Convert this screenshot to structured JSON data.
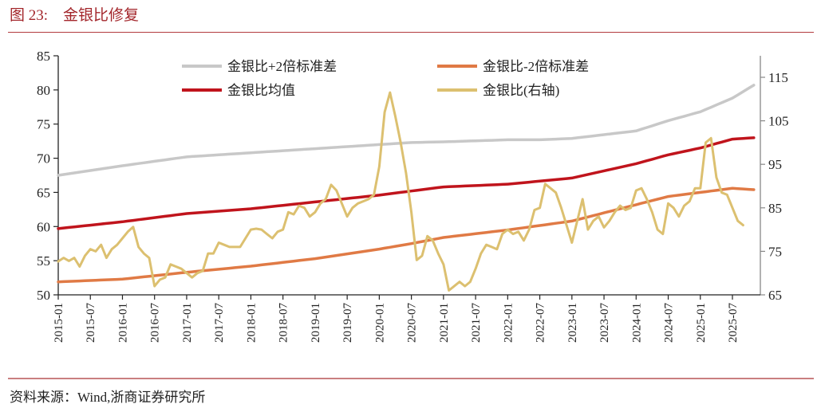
{
  "header": {
    "figure_number": "图 23:",
    "figure_title": "金银比修复"
  },
  "footer": {
    "source": "资料来源：Wind,浙商证券研究所"
  },
  "colors": {
    "plus2sd": "#c8c8c8",
    "minus2sd": "#e07a45",
    "mean": "#c0141c",
    "ratio": "#dcc070",
    "title": "#a3262b"
  },
  "chart_data": {
    "type": "line",
    "title": "金银比修复",
    "xlabel": "",
    "ylabel_left": "",
    "ylabel_right": "",
    "ylim_left": [
      50,
      85
    ],
    "ylim_right": [
      65,
      120
    ],
    "yticks_left": [
      50,
      55,
      60,
      65,
      70,
      75,
      80,
      85
    ],
    "yticks_right": [
      65,
      75,
      85,
      95,
      105,
      115
    ],
    "xtick_labels": [
      "2015-01",
      "2015-07",
      "2016-01",
      "2016-07",
      "2017-01",
      "2017-07",
      "2018-01",
      "2018-07",
      "2019-01",
      "2019-07",
      "2020-01",
      "2020-07",
      "2021-01",
      "2021-07",
      "2022-01",
      "2022-07",
      "2023-01",
      "2023-07",
      "2024-01",
      "2024-07",
      "2025-01",
      "2025-07"
    ],
    "x_start": "2015-01",
    "frequency": "monthly",
    "grid": false,
    "legend_position": "top",
    "legend": [
      "金银比+2倍标准差",
      "金银比-2倍标准差",
      "金银比均值",
      "金银比(右轴)"
    ],
    "series": [
      {
        "name": "金银比+2倍标准差",
        "axis": "left",
        "color": "#c8c8c8",
        "anchor_months": [
          0,
          12,
          24,
          36,
          48,
          60,
          66,
          72,
          84,
          90,
          96,
          108,
          114,
          120,
          126,
          130
        ],
        "anchor_values": [
          67.5,
          68.9,
          70.2,
          70.8,
          71.4,
          72.0,
          72.3,
          72.4,
          72.7,
          72.7,
          72.9,
          74.0,
          75.5,
          76.8,
          78.8,
          80.7
        ]
      },
      {
        "name": "金银比-2倍标准差",
        "axis": "left",
        "color": "#e07a45",
        "anchor_months": [
          0,
          12,
          24,
          36,
          48,
          60,
          66,
          72,
          84,
          96,
          108,
          114,
          120,
          126,
          130
        ],
        "anchor_values": [
          51.9,
          52.3,
          53.3,
          54.2,
          55.3,
          56.7,
          57.5,
          58.4,
          59.5,
          60.8,
          63.2,
          64.4,
          65.0,
          65.6,
          65.4
        ]
      },
      {
        "name": "金银比均值",
        "axis": "left",
        "color": "#c0141c",
        "anchor_months": [
          0,
          12,
          24,
          36,
          48,
          60,
          66,
          72,
          84,
          96,
          108,
          114,
          120,
          126,
          130
        ],
        "anchor_values": [
          59.7,
          60.7,
          61.9,
          62.6,
          63.6,
          64.6,
          65.2,
          65.8,
          66.2,
          67.1,
          69.2,
          70.5,
          71.5,
          72.8,
          73.0
        ]
      },
      {
        "name": "金银比(右轴)",
        "axis": "right",
        "color": "#dcc070",
        "values": [
          72.7,
          73.5,
          72.8,
          73.5,
          71.5,
          74,
          75.5,
          75,
          76.5,
          73.5,
          75.5,
          76.5,
          78,
          79.5,
          80.6,
          76,
          74.5,
          73.5,
          67,
          68.5,
          69,
          72,
          71.5,
          71,
          70,
          69,
          70,
          70.5,
          74.5,
          74.5,
          77,
          76.5,
          76,
          76,
          76,
          78,
          80,
          80.2,
          80,
          79,
          78,
          79.5,
          80,
          84,
          83.5,
          85.5,
          85,
          83,
          84,
          86,
          87,
          90.3,
          89,
          86,
          83,
          85,
          86,
          86.5,
          87,
          88,
          94.5,
          107,
          111.5,
          106,
          100,
          93,
          84,
          73,
          74,
          78.5,
          77.5,
          74.5,
          72,
          66,
          67,
          68,
          67,
          68,
          71,
          74.5,
          76.5,
          76,
          75.5,
          79,
          80,
          79,
          79.5,
          77.5,
          80,
          84.5,
          85,
          90.5,
          89.5,
          88.5,
          85,
          81,
          77,
          82,
          87,
          80,
          82,
          83,
          80.5,
          82,
          84,
          85.5,
          84.5,
          85,
          89,
          89.5,
          87,
          84,
          80,
          79,
          86,
          85,
          83,
          85.5,
          86.5,
          89.5,
          89.5,
          100,
          101,
          92,
          88.5,
          88,
          85,
          82,
          81
        ]
      }
    ]
  }
}
